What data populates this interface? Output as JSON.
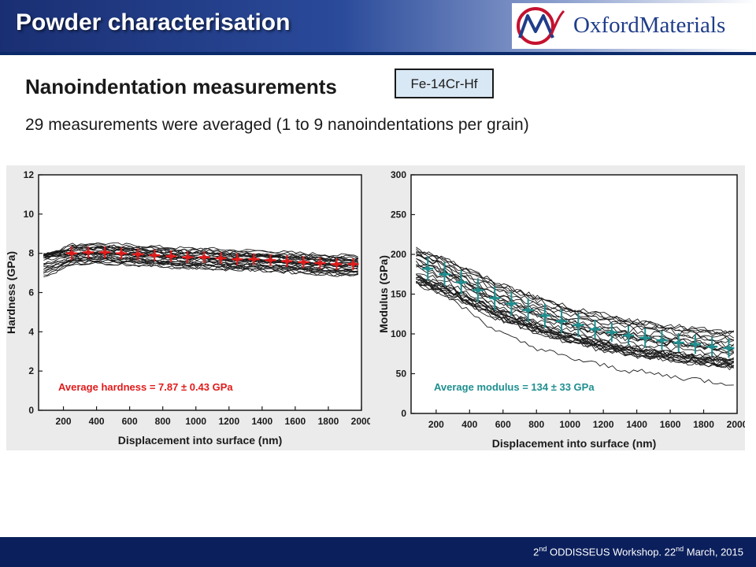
{
  "header": {
    "title": "Powder characterisation",
    "logo_text": "OxfordMaterials"
  },
  "subtitle": "Nanoindentation measurements",
  "alloy_label": "Fe-14Cr-Hf",
  "note": "29 measurements were averaged (1 to 9 nanoindentations per grain)",
  "colors": {
    "hardness_marker": "#e11b1b",
    "modulus_marker": "#1f8f8f",
    "header": "#1a2f73",
    "footer": "#0b1f5c"
  },
  "chart_data": [
    {
      "type": "line",
      "xlabel": "Displacement into surface (nm)",
      "ylabel": "Hardness (GPa)",
      "xlim": [
        50,
        2000
      ],
      "ylim": [
        0,
        12
      ],
      "xticks": [
        200,
        400,
        600,
        800,
        1000,
        1200,
        1400,
        1600,
        1800,
        2000
      ],
      "yticks": [
        0,
        2,
        4,
        6,
        8,
        10,
        12
      ],
      "annotation": "Average hardness = 7.87 ± 0.43 GPa",
      "individual_curves": 29,
      "average_points": {
        "x": [
          250,
          350,
          450,
          550,
          650,
          750,
          850,
          950,
          1050,
          1150,
          1250,
          1350,
          1450,
          1550,
          1650,
          1750,
          1850,
          1950
        ],
        "y": [
          8.0,
          8.05,
          8.05,
          8.0,
          7.95,
          7.9,
          7.85,
          7.8,
          7.8,
          7.75,
          7.7,
          7.7,
          7.65,
          7.6,
          7.55,
          7.5,
          7.45,
          7.45
        ],
        "err": [
          0.35,
          0.3,
          0.3,
          0.3,
          0.3,
          0.3,
          0.3,
          0.3,
          0.3,
          0.3,
          0.3,
          0.3,
          0.3,
          0.3,
          0.3,
          0.3,
          0.3,
          0.3
        ]
      },
      "grid": false
    },
    {
      "type": "line",
      "xlabel": "Displacement into surface (nm)",
      "ylabel": "Modulus (GPa)",
      "xlim": [
        50,
        2000
      ],
      "ylim": [
        0,
        300
      ],
      "xticks": [
        200,
        400,
        600,
        800,
        1000,
        1200,
        1400,
        1600,
        1800,
        2000
      ],
      "yticks": [
        0,
        50,
        100,
        150,
        200,
        250,
        300
      ],
      "annotation": "Average modulus = 134 ± 33 GPa",
      "individual_curves": 29,
      "average_points": {
        "x": [
          150,
          250,
          350,
          450,
          550,
          650,
          750,
          850,
          950,
          1050,
          1150,
          1250,
          1350,
          1450,
          1550,
          1650,
          1750,
          1850,
          1950
        ],
        "y": [
          182,
          175,
          165,
          155,
          145,
          138,
          130,
          123,
          116,
          111,
          106,
          102,
          98,
          95,
          92,
          89,
          87,
          84,
          82
        ],
        "err": [
          15,
          15,
          15,
          15,
          15,
          15,
          15,
          15,
          15,
          15,
          12,
          12,
          12,
          12,
          12,
          12,
          12,
          12,
          12
        ]
      },
      "grid": false
    }
  ],
  "footer": {
    "text_1": "2",
    "sup_1": "nd",
    "text_2": " ODDISSEUS Workshop. 22",
    "sup_2": "nd",
    "text_3": " March, 2015"
  }
}
